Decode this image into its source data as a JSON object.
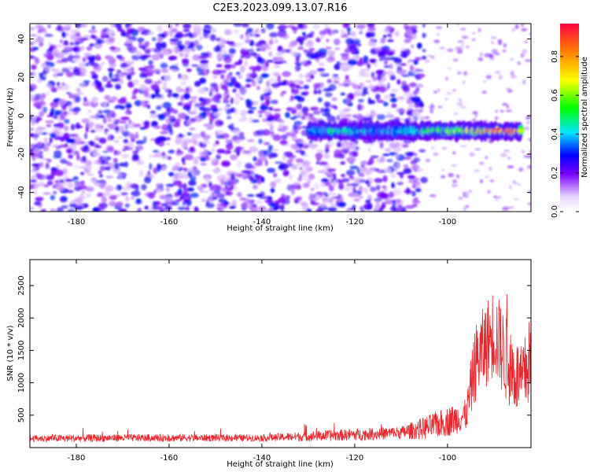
{
  "title": "C2E3.2023.099.13.07.R16",
  "chart_data": [
    {
      "type": "heatmap",
      "xlabel": "Height of straight line (km)",
      "ylabel": "Frequency (Hz)",
      "xlim": [
        -190,
        -82
      ],
      "ylim": [
        -50,
        48
      ],
      "x_ticks": [
        -180,
        -160,
        -140,
        -120,
        -100
      ],
      "y_ticks": [
        -40,
        -20,
        0,
        20,
        40
      ],
      "colorbar": {
        "label": "Normalized spectral amplitude",
        "range": [
          0,
          0.97
        ],
        "ticks": [
          0.0,
          0.2,
          0.4,
          0.6,
          0.8
        ],
        "colormap": [
          "#ffffff",
          "#7a00ff",
          "#0000ff",
          "#00e5ff",
          "#00ff00",
          "#ffff00",
          "#ff8000",
          "#ff0040"
        ]
      },
      "background_noise": {
        "x_range": [
          -190,
          -105
        ],
        "amplitude": [
          0.02,
          0.25
        ]
      },
      "signal_band": {
        "center_frequency_hz": -8,
        "points": [
          {
            "x": -130,
            "amplitude": 0.28
          },
          {
            "x": -125,
            "amplitude": 0.38
          },
          {
            "x": -120,
            "amplitude": 0.35
          },
          {
            "x": -115,
            "amplitude": 0.3
          },
          {
            "x": -110,
            "amplitude": 0.32
          },
          {
            "x": -105,
            "amplitude": 0.4
          },
          {
            "x": -100,
            "amplitude": 0.5
          },
          {
            "x": -96,
            "amplitude": 0.55
          },
          {
            "x": -92,
            "amplitude": 0.7
          },
          {
            "x": -88,
            "amplitude": 0.9
          },
          {
            "x": -84,
            "amplitude": 0.62
          }
        ]
      }
    },
    {
      "type": "line",
      "xlabel": "Height of straight line (km)",
      "ylabel": "SNR (10 * v/v)",
      "xlim": [
        -190,
        -82
      ],
      "ylim": [
        0,
        2900
      ],
      "x_ticks": [
        -180,
        -160,
        -140,
        -120,
        -100
      ],
      "y_ticks": [
        500,
        1000,
        1500,
        2000,
        2500
      ],
      "series": [
        {
          "color": "#e8262b",
          "envelope": [
            {
              "x": -190,
              "baseline": 140,
              "spread": 90
            },
            {
              "x": -180,
              "baseline": 145,
              "spread": 110
            },
            {
              "x": -170,
              "baseline": 150,
              "spread": 100
            },
            {
              "x": -160,
              "baseline": 150,
              "spread": 105
            },
            {
              "x": -150,
              "baseline": 150,
              "spread": 100
            },
            {
              "x": -140,
              "baseline": 150,
              "spread": 95
            },
            {
              "x": -130,
              "baseline": 175,
              "spread": 140
            },
            {
              "x": -120,
              "baseline": 200,
              "spread": 170
            },
            {
              "x": -110,
              "baseline": 230,
              "spread": 180
            },
            {
              "x": -105,
              "baseline": 300,
              "spread": 320
            },
            {
              "x": -100,
              "baseline": 400,
              "spread": 420
            },
            {
              "x": -96,
              "baseline": 500,
              "spread": 450
            },
            {
              "x": -94,
              "baseline": 1300,
              "spread": 1100
            },
            {
              "x": -90,
              "baseline": 1800,
              "spread": 1300
            },
            {
              "x": -87,
              "baseline": 1300,
              "spread": 1200
            },
            {
              "x": -84,
              "baseline": 1000,
              "spread": 1000
            },
            {
              "x": -82,
              "baseline": 1400,
              "spread": 1300
            }
          ]
        }
      ]
    }
  ]
}
